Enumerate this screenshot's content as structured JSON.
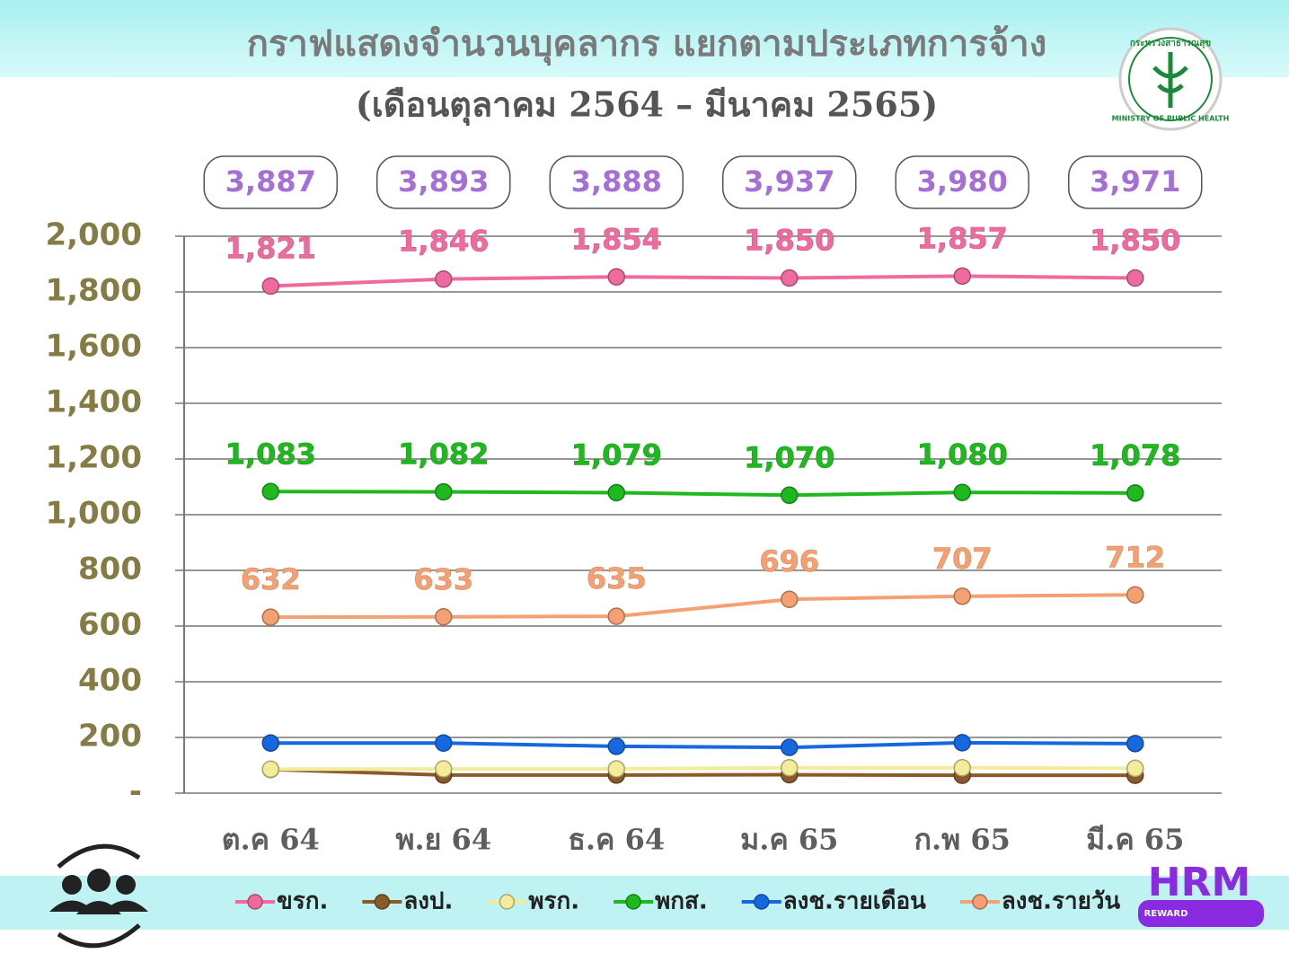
{
  "chart_data": {
    "type": "line",
    "title": "กราฟแสดงจำนวนบุคลากร แยกตามประเภทการจ้าง",
    "subtitle": "(เดือนตุลาคม 2564 – มีนาคม 2565)",
    "categories": [
      "ต.ค 64",
      "พ.ย 64",
      "ธ.ค 64",
      "ม.ค 65",
      "ก.พ 65",
      "มี.ค 65"
    ],
    "totals": {
      "values": [
        3887,
        3893,
        3888,
        3937,
        3980,
        3971
      ],
      "value_labels": [
        "3,887",
        "3,893",
        "3,888",
        "3,937",
        "3,980",
        "3,971"
      ],
      "color": "#a66fd6"
    },
    "series": [
      {
        "name": "ขรก.",
        "color": "#ef6a9e",
        "values": [
          1821,
          1846,
          1854,
          1850,
          1857,
          1850
        ],
        "value_labels": [
          "1,821",
          "1,846",
          "1,854",
          "1,850",
          "1,857",
          "1,850"
        ],
        "data_labels": true
      },
      {
        "name": "ลงป.",
        "color": "#8b5a2b",
        "values": [
          85,
          65,
          65,
          66,
          64,
          64
        ]
      },
      {
        "name": "พรก.",
        "color": "#f3ec9a",
        "values": [
          86,
          87,
          87,
          91,
          91,
          89
        ]
      },
      {
        "name": "พกส.",
        "color": "#1fb81f",
        "values": [
          1083,
          1082,
          1079,
          1070,
          1080,
          1078
        ],
        "value_labels": [
          "1,083",
          "1,082",
          "1,079",
          "1,070",
          "1,080",
          "1,078"
        ],
        "data_labels": true
      },
      {
        "name": "ลงช.รายเดือน",
        "color": "#1768e0",
        "values": [
          180,
          180,
          168,
          164,
          181,
          178
        ]
      },
      {
        "name": "ลงช.รายวัน",
        "color": "#f4a072",
        "values": [
          632,
          633,
          635,
          696,
          707,
          712
        ],
        "data_labels": true
      }
    ],
    "ylim": [
      0,
      2000
    ],
    "yticks": [
      {
        "value": 0,
        "label": "-"
      },
      200,
      400,
      600,
      800,
      {
        "value": 1000,
        "label": "1,000"
      },
      {
        "value": 1200,
        "label": "1,200"
      },
      {
        "value": 1400,
        "label": "1,400"
      },
      {
        "value": 1600,
        "label": "1,600"
      },
      {
        "value": 1800,
        "label": "1,800"
      },
      {
        "value": 2000,
        "label": "2,000"
      }
    ],
    "grid": true
  },
  "branding": {
    "logo_th": "กระทรวงสาธารณสุข",
    "logo_en": "MINISTRY OF PUBLIC HEALTH",
    "badge": "HRM",
    "badge_sub": "REWARD"
  }
}
